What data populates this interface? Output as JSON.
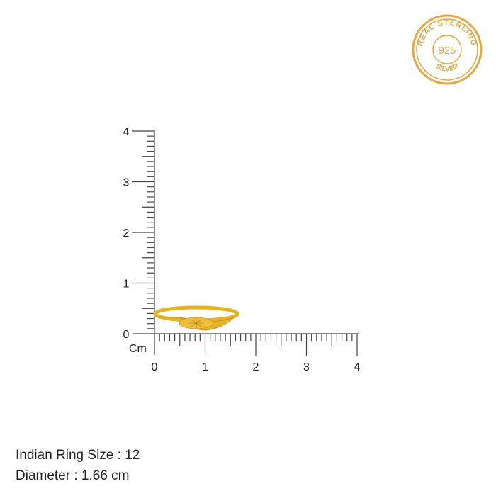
{
  "badge": {
    "text_top": "REAL STERLING",
    "number": "925",
    "text_bottom": "SILVER",
    "color": "#e2a845"
  },
  "ruler": {
    "unit": "Cm",
    "x_labels": [
      "0",
      "1",
      "2",
      "3",
      "4"
    ],
    "y_labels": [
      "0",
      "1",
      "2",
      "3",
      "4"
    ]
  },
  "ring": {
    "color": "#e6b320"
  },
  "specs": {
    "ring_size": "Indian Ring Size : 12",
    "diameter": "Diameter : 1.66 cm"
  }
}
